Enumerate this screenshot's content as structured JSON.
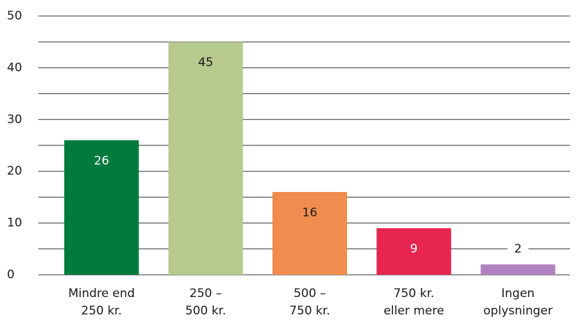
{
  "chart_data": {
    "type": "bar",
    "categories": [
      [
        "Mindre end",
        "250 kr."
      ],
      [
        "250 –",
        "500 kr."
      ],
      [
        "500 –",
        "750 kr."
      ],
      [
        "750 kr.",
        "eller mere"
      ],
      [
        "Ingen",
        "oplysninger"
      ]
    ],
    "values": [
      26,
      45,
      16,
      9,
      2
    ],
    "colors": [
      "#007a3d",
      "#b7c98d",
      "#f08c4e",
      "#e6264f",
      "#b083c0"
    ],
    "ylim": [
      0,
      50
    ],
    "yticks": [
      0,
      10,
      20,
      30,
      40,
      50
    ],
    "minor_yticks": [
      5,
      15,
      25,
      35,
      45
    ],
    "grid": true
  }
}
